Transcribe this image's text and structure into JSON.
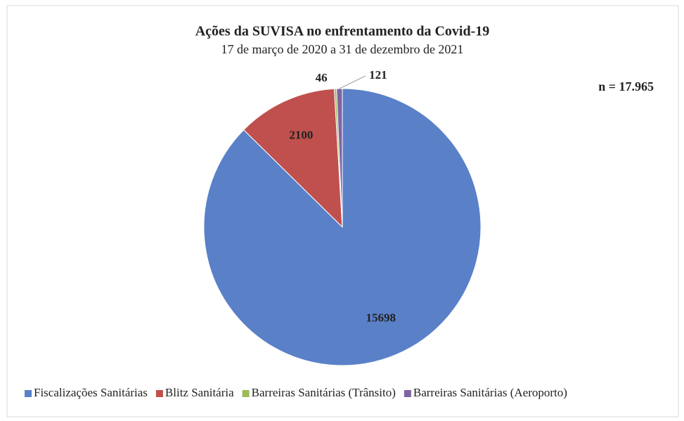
{
  "chart_data": {
    "type": "pie",
    "title": "Ações da SUVISA no enfrentamento da Covid-19",
    "subtitle": "17 de março de 2020 a 31 de dezembro de 2021",
    "annotation": "n = 17.965",
    "categories": [
      "Fiscalizações Sanitárias",
      "Blitz Sanitária",
      "Barreiras Sanitárias (Trânsito)",
      "Barreiras Sanitárias (Aeroporto)"
    ],
    "values": [
      15698,
      2100,
      46,
      121
    ],
    "colors": [
      "#5a80c8",
      "#c0504d",
      "#9bbb59",
      "#8064a2"
    ],
    "legend": "bottom"
  }
}
